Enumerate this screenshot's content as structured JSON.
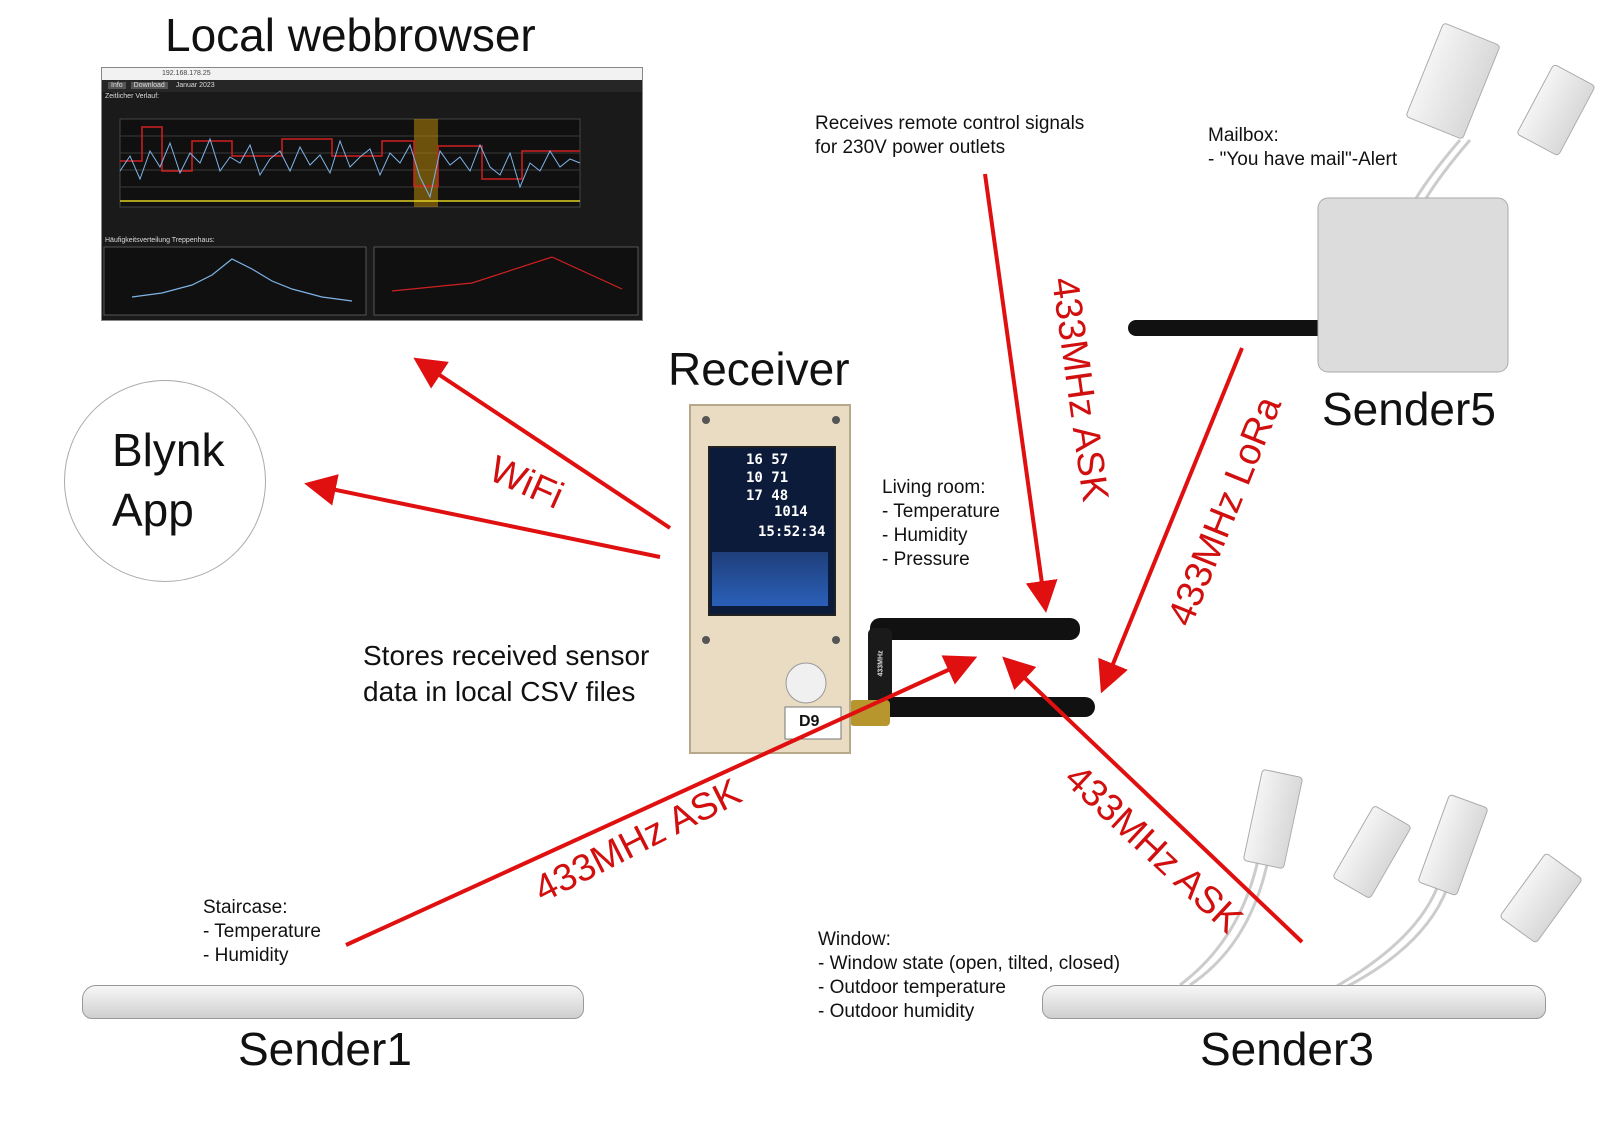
{
  "labels": {
    "local_webbrowser": "Local webbrowser",
    "receiver": "Receiver",
    "sender5": "Sender5",
    "sender1": "Sender1",
    "sender3": "Sender3",
    "blynk_line1": "Blynk",
    "blynk_line2": "App"
  },
  "notes": {
    "remote_control": "Receives remote control signals\nfor 230V power outlets",
    "mailbox": "Mailbox:\n- \"You have mail\"-Alert",
    "living_room": "Living room:\n- Temperature\n- Humidity\n- Pressure",
    "stores": "Stores received sensor\ndata in local CSV files",
    "staircase": "Staircase:\n- Temperature\n- Humidity",
    "window": "Window:\n- Window state (open, tilted, closed)\n- Outdoor temperature\n- Outdoor humidity"
  },
  "links": {
    "wifi": "WiFi",
    "ask_remote": "433MHz ASK",
    "lora": "433MHz LoRa",
    "ask_sender1": "433MHz ASK",
    "ask_sender3": "433MHz ASK"
  },
  "browser": {
    "address": "192.168.178.25",
    "buttons": [
      "Info",
      "Download"
    ],
    "month": "Januar 2023",
    "section1": "Zeitlicher Verlauf:",
    "section2": "Häufigkeitsverteilung Treppenhaus:"
  },
  "device": {
    "lcd_line1": "16 57",
    "lcd_line2": "10 71",
    "lcd_line3": "17 48",
    "lcd_line4": "1014",
    "lcd_time": "15:52:34",
    "tag": "D9",
    "antenna_label": "433MHz"
  },
  "colors": {
    "arrow": "#e01010",
    "label": "#d10f0f",
    "lcd": "#0d1b3a"
  }
}
